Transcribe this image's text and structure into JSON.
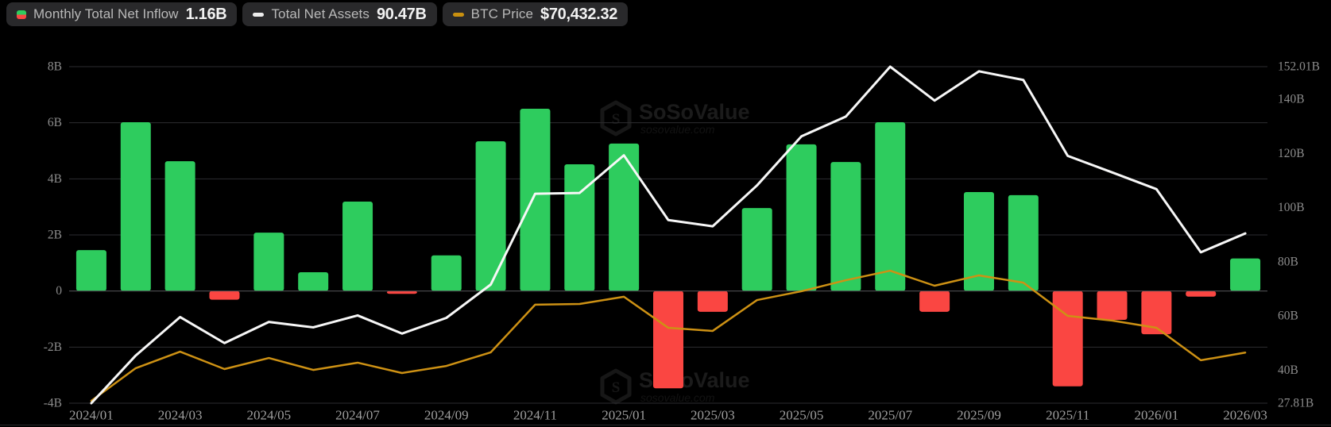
{
  "legend": {
    "items": [
      {
        "label": "Monthly Total Net Inflow",
        "value": "1.16B",
        "icon": "net-inflow-icon",
        "icon_colors": {
          "positive": "#2ecc5e",
          "negative": "#fa4642"
        }
      },
      {
        "label": "Total Net Assets",
        "value": "90.47B",
        "icon": "net-assets-icon",
        "icon_colors": {
          "line": "#ededed"
        }
      },
      {
        "label": "BTC Price",
        "value": "$70,432.32",
        "icon": "btc-price-icon",
        "icon_colors": {
          "line": "#c9900f"
        }
      }
    ]
  },
  "watermark": {
    "brand": "SoSoValue",
    "domain": "sosovalue.com"
  },
  "colors": {
    "background": "#000000",
    "bar_positive": "#2ecc5e",
    "bar_negative": "#fa4642",
    "assets_line": "#f7f7f7",
    "btc_line": "#cd9114",
    "gridline": "#2d2d30",
    "zero_line": "#4a4a4e",
    "y_tick_text": "#8c8c8c",
    "x_tick_text": "#9e9e9e"
  },
  "chart_data": {
    "type": "combo",
    "title": "",
    "grid": true,
    "legend_position": "top-left",
    "categories": [
      "2024/01",
      "2024/02",
      "2024/03",
      "2024/04",
      "2024/05",
      "2024/06",
      "2024/07",
      "2024/08",
      "2024/09",
      "2024/10",
      "2024/11",
      "2024/12",
      "2025/01",
      "2025/02",
      "2025/03",
      "2025/04",
      "2025/05",
      "2025/06",
      "2025/07",
      "2025/08",
      "2025/09",
      "2025/10",
      "2025/11",
      "2025/12",
      "2026/01",
      "2026/02",
      "2026/03"
    ],
    "x_tick_labels": [
      "2024/01",
      "2024/03",
      "2024/05",
      "2024/07",
      "2024/09",
      "2024/11",
      "2025/01",
      "2025/03",
      "2025/05",
      "2025/07",
      "2025/09",
      "2025/11",
      "2026/01",
      "2026/03"
    ],
    "series": [
      {
        "name": "Monthly Total Net Inflow",
        "type": "bar",
        "axis": "left",
        "unit": "B USD",
        "values": [
          1.46,
          6.02,
          4.63,
          -0.31,
          2.08,
          0.67,
          3.19,
          -0.1,
          1.27,
          5.34,
          6.5,
          4.52,
          5.26,
          -3.47,
          -0.74,
          2.96,
          5.23,
          4.6,
          6.02,
          -0.74,
          3.53,
          3.42,
          -3.4,
          -1.03,
          -1.54,
          -0.2,
          1.16
        ]
      },
      {
        "name": "Total Net Assets",
        "type": "line",
        "axis": "right",
        "unit": "B USD",
        "values": [
          27.81,
          45.4,
          59.6,
          50.0,
          57.8,
          55.8,
          60.2,
          53.5,
          59.3,
          71.6,
          105.1,
          105.4,
          119.3,
          95.4,
          93.1,
          108.2,
          126.3,
          133.6,
          152.01,
          139.5,
          150.3,
          147.1,
          119.1,
          113.0,
          106.8,
          83.5,
          90.47
        ]
      },
      {
        "name": "BTC Price",
        "type": "line",
        "axis": "btc",
        "unit": "USD",
        "values": [
          42500,
          61400,
          71000,
          60900,
          67300,
          60400,
          64600,
          58600,
          62700,
          70600,
          98200,
          98600,
          102800,
          84800,
          83000,
          100900,
          106000,
          112400,
          117900,
          109200,
          115200,
          111000,
          91700,
          89000,
          84800,
          66000,
          70432.32
        ]
      }
    ],
    "left_axis": {
      "ticks": [
        "8B",
        "6B",
        "4B",
        "2B",
        "0",
        "-2B",
        "-4B"
      ],
      "tick_values": [
        8,
        6,
        4,
        2,
        0,
        -2,
        -4
      ],
      "ylim": [
        -4,
        8
      ]
    },
    "right_axis": {
      "ticks": [
        "152.01B",
        "140B",
        "120B",
        "100B",
        "80B",
        "60B",
        "40B",
        "27.81B"
      ],
      "tick_values": [
        152.01,
        140,
        120,
        100,
        80,
        60,
        40,
        27.81
      ],
      "ylim": [
        27.81,
        152.01
      ]
    },
    "btc_axis": {
      "visible": false,
      "ylim": [
        41120,
        236160
      ]
    }
  }
}
